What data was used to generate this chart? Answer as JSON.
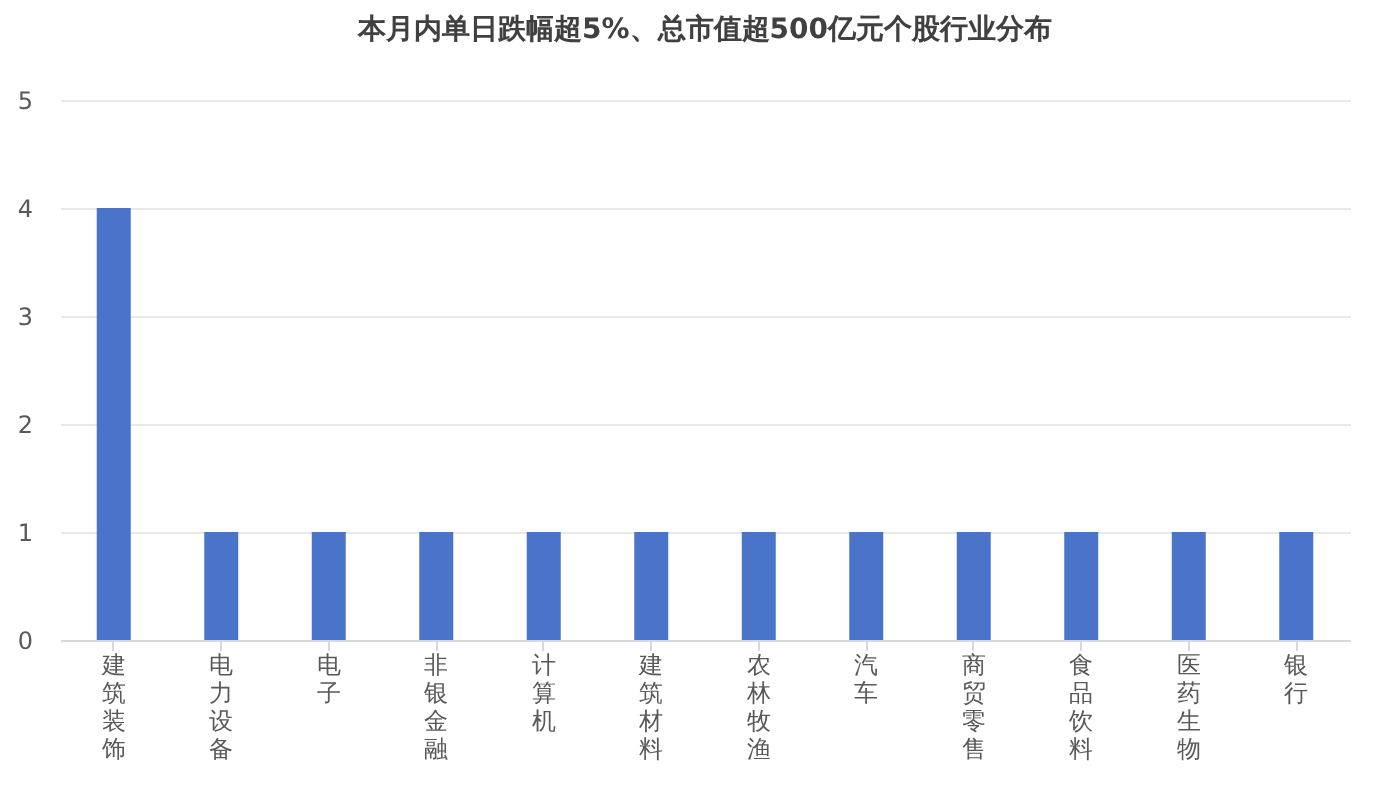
{
  "chart_data": {
    "type": "bar",
    "title": "本月内单日跌幅超5%、总市值超500亿元个股行业分布",
    "categories": [
      "建筑装饰",
      "电力设备",
      "电子",
      "非银金融",
      "计算机",
      "建筑材料",
      "农林牧渔",
      "汽车",
      "商贸零售",
      "食品饮料",
      "医药生物",
      "银行"
    ],
    "values": [
      4,
      1,
      1,
      1,
      1,
      1,
      1,
      1,
      1,
      1,
      1,
      1
    ],
    "color": "#4a74c9",
    "ylim": [
      0,
      5
    ],
    "yticks": [
      0,
      1,
      2,
      3,
      4,
      5
    ],
    "grid": "y"
  }
}
